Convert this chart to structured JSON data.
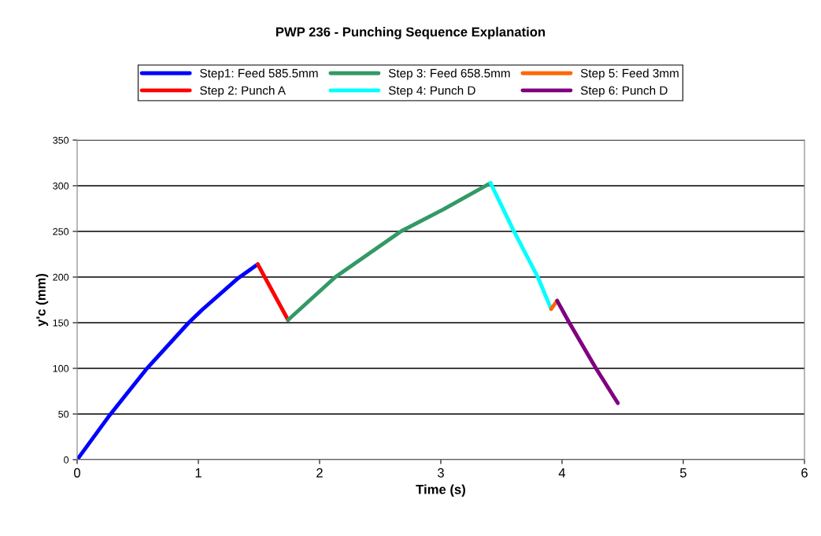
{
  "chart_data": {
    "type": "line",
    "title": "PWP 236 - Punching Sequence Explanation",
    "xlabel": "Time (s)",
    "ylabel": "y'c (mm)",
    "xlim": [
      0,
      6
    ],
    "xticks": [
      0,
      1,
      2,
      3,
      4,
      5,
      6
    ],
    "ylim": [
      0,
      350
    ],
    "yticks": [
      0,
      50,
      100,
      150,
      200,
      250,
      300,
      350
    ],
    "grid": "y",
    "legend": "top",
    "marker": "none",
    "line_style": "solid",
    "series": [
      {
        "name": "Step1: Feed 585.5mm",
        "color": "#0000ff",
        "x": [
          0,
          0.27,
          0.57,
          0.92,
          1.03,
          1.33,
          1.49
        ],
        "values": [
          0,
          49,
          99,
          150,
          164,
          199,
          214
        ]
      },
      {
        "name": "Step 2: Punch A",
        "color": "#ff0000",
        "x": [
          1.49,
          1.74
        ],
        "values": [
          214,
          153
        ]
      },
      {
        "name": "Step 3: Feed 658.5mm",
        "color": "#339966",
        "x": [
          1.74,
          2.13,
          2.67,
          3.02,
          3.41
        ],
        "values": [
          153,
          200,
          250,
          274,
          303
        ]
      },
      {
        "name": "Step 4: Punch D",
        "color": "#00ffff",
        "x": [
          3.41,
          3.6,
          3.8,
          3.91
        ],
        "values": [
          303,
          251,
          200,
          165
        ]
      },
      {
        "name": "Step 5: Feed 3mm",
        "color": "#ff6600",
        "x": [
          3.91,
          3.96
        ],
        "values": [
          165,
          174
        ]
      },
      {
        "name": "Step 6: Punch D",
        "color": "#800080",
        "x": [
          3.96,
          4.06,
          4.28,
          4.46
        ],
        "values": [
          174,
          150,
          100,
          62
        ]
      }
    ]
  }
}
